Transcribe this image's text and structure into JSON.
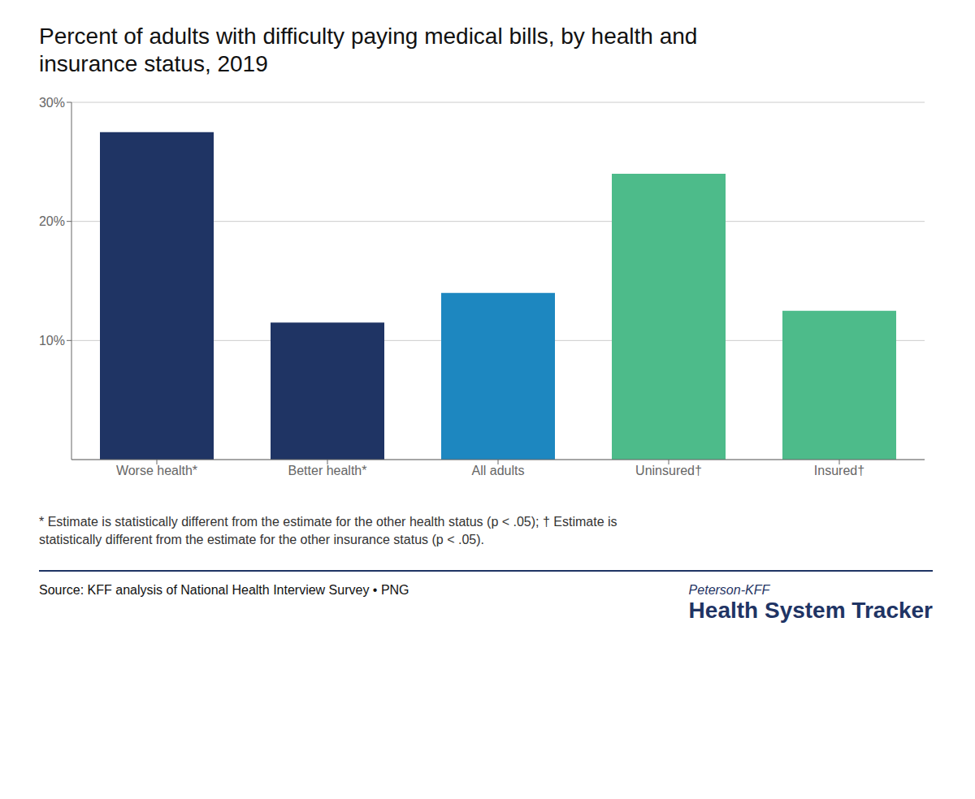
{
  "chart_data": {
    "type": "bar",
    "title": "Percent of adults with difficulty paying medical bills, by health and\ninsurance status, 2019",
    "categories": [
      "Worse health*",
      "Better health*",
      "All adults",
      "Uninsured†",
      "Insured†"
    ],
    "values": [
      27.5,
      11.5,
      14.0,
      24.0,
      12.5
    ],
    "colors": [
      "#1f3464",
      "#1f3464",
      "#1d87c0",
      "#4dbb8a",
      "#4dbb8a"
    ],
    "ylim": [
      0,
      30
    ],
    "yticks": [
      {
        "value": 10,
        "label": "10%"
      },
      {
        "value": 20,
        "label": "20%"
      },
      {
        "value": 30,
        "label": "30%"
      }
    ],
    "grid": true,
    "annotations": [
      "* Estimate is statistically different from the estimate for the other health status (p < .05); † Estimate is\nstatistically different from the estimate for the other insurance status (p < .05).",
      "Source: KFF analysis of National Health Interview Survey • PNG",
      "Peterson-KFF",
      "Health System Tracker"
    ]
  }
}
